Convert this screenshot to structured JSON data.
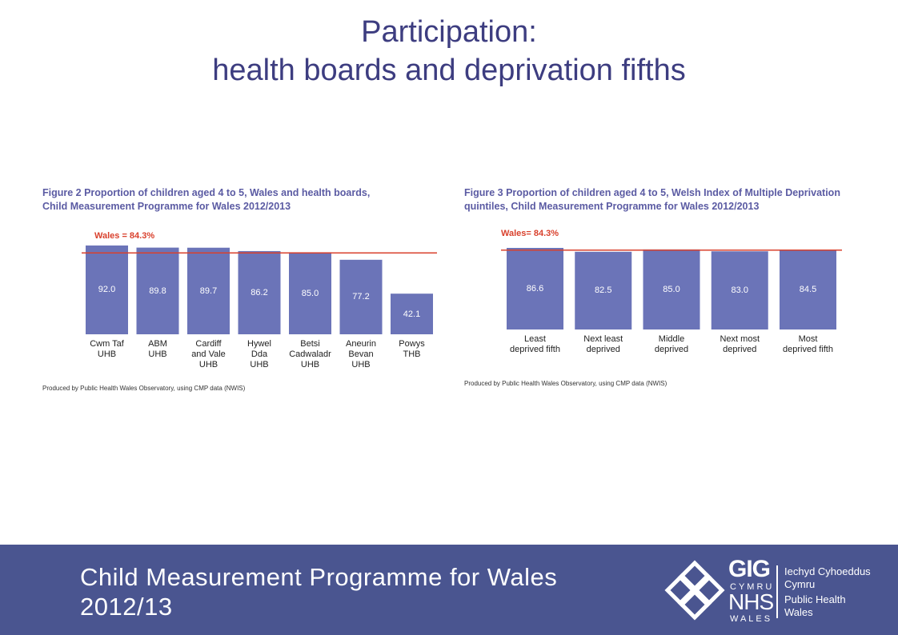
{
  "title": "Participation:\nhealth boards and deprivation fifths",
  "footer": {
    "text": "Child Measurement Programme for Wales\n2012/13",
    "logo": {
      "gig": "GIG",
      "cymru": "CYMRU",
      "nhs": "NHS",
      "wales": "WALES",
      "welsh_name": "Iechyd Cyhoeddus\nCymru",
      "english_name": "Public Health\nWales"
    }
  },
  "chart_data": [
    {
      "type": "bar",
      "title": "Figure 2 Proportion of children aged 4 to 5, Wales and health boards,\nChild Measurement Programme for Wales 2012/2013",
      "categories": [
        "Cwm Taf\nUHB",
        "ABM\nUHB",
        "Cardiff\nand Vale\nUHB",
        "Hywel\nDda\nUHB",
        "Betsi\nCadwaladr\nUHB",
        "Aneurin\nBevan\nUHB",
        "Powys\nTHB"
      ],
      "values": [
        92.0,
        89.8,
        89.7,
        86.2,
        85.0,
        77.2,
        42.1
      ],
      "value_labels": [
        "92.0",
        "89.8",
        "89.7",
        "86.2",
        "85.0",
        "77.2",
        "42.1"
      ],
      "color": "#6b74b8",
      "ylim": [
        0,
        100
      ],
      "reference_line": {
        "value": 84.3,
        "label": "Wales = 84.3%",
        "color": "#d9412d"
      },
      "source": "Produced by Public Health Wales Observatory, using CMP data (NWIS)"
    },
    {
      "type": "bar",
      "title": "Figure 3 Proportion of children aged 4 to 5, Welsh Index of Multiple Deprivation\nquintiles, Child Measurement Programme for Wales 2012/2013",
      "categories": [
        "Least\ndeprived fifth",
        "Next least\ndeprived",
        "Middle\ndeprived",
        "Next most\ndeprived",
        "Most\ndeprived fifth"
      ],
      "values": [
        86.6,
        82.5,
        85.0,
        83.0,
        84.5
      ],
      "value_labels": [
        "86.6",
        "82.5",
        "85.0",
        "83.0",
        "84.5"
      ],
      "color": "#6b74b8",
      "ylim": [
        0,
        100
      ],
      "reference_line": {
        "value": 84.3,
        "label": "Wales= 84.3%",
        "color": "#d9412d"
      },
      "source": "Produced by Public Health Wales Observatory, using CMP data (NWIS)"
    }
  ]
}
